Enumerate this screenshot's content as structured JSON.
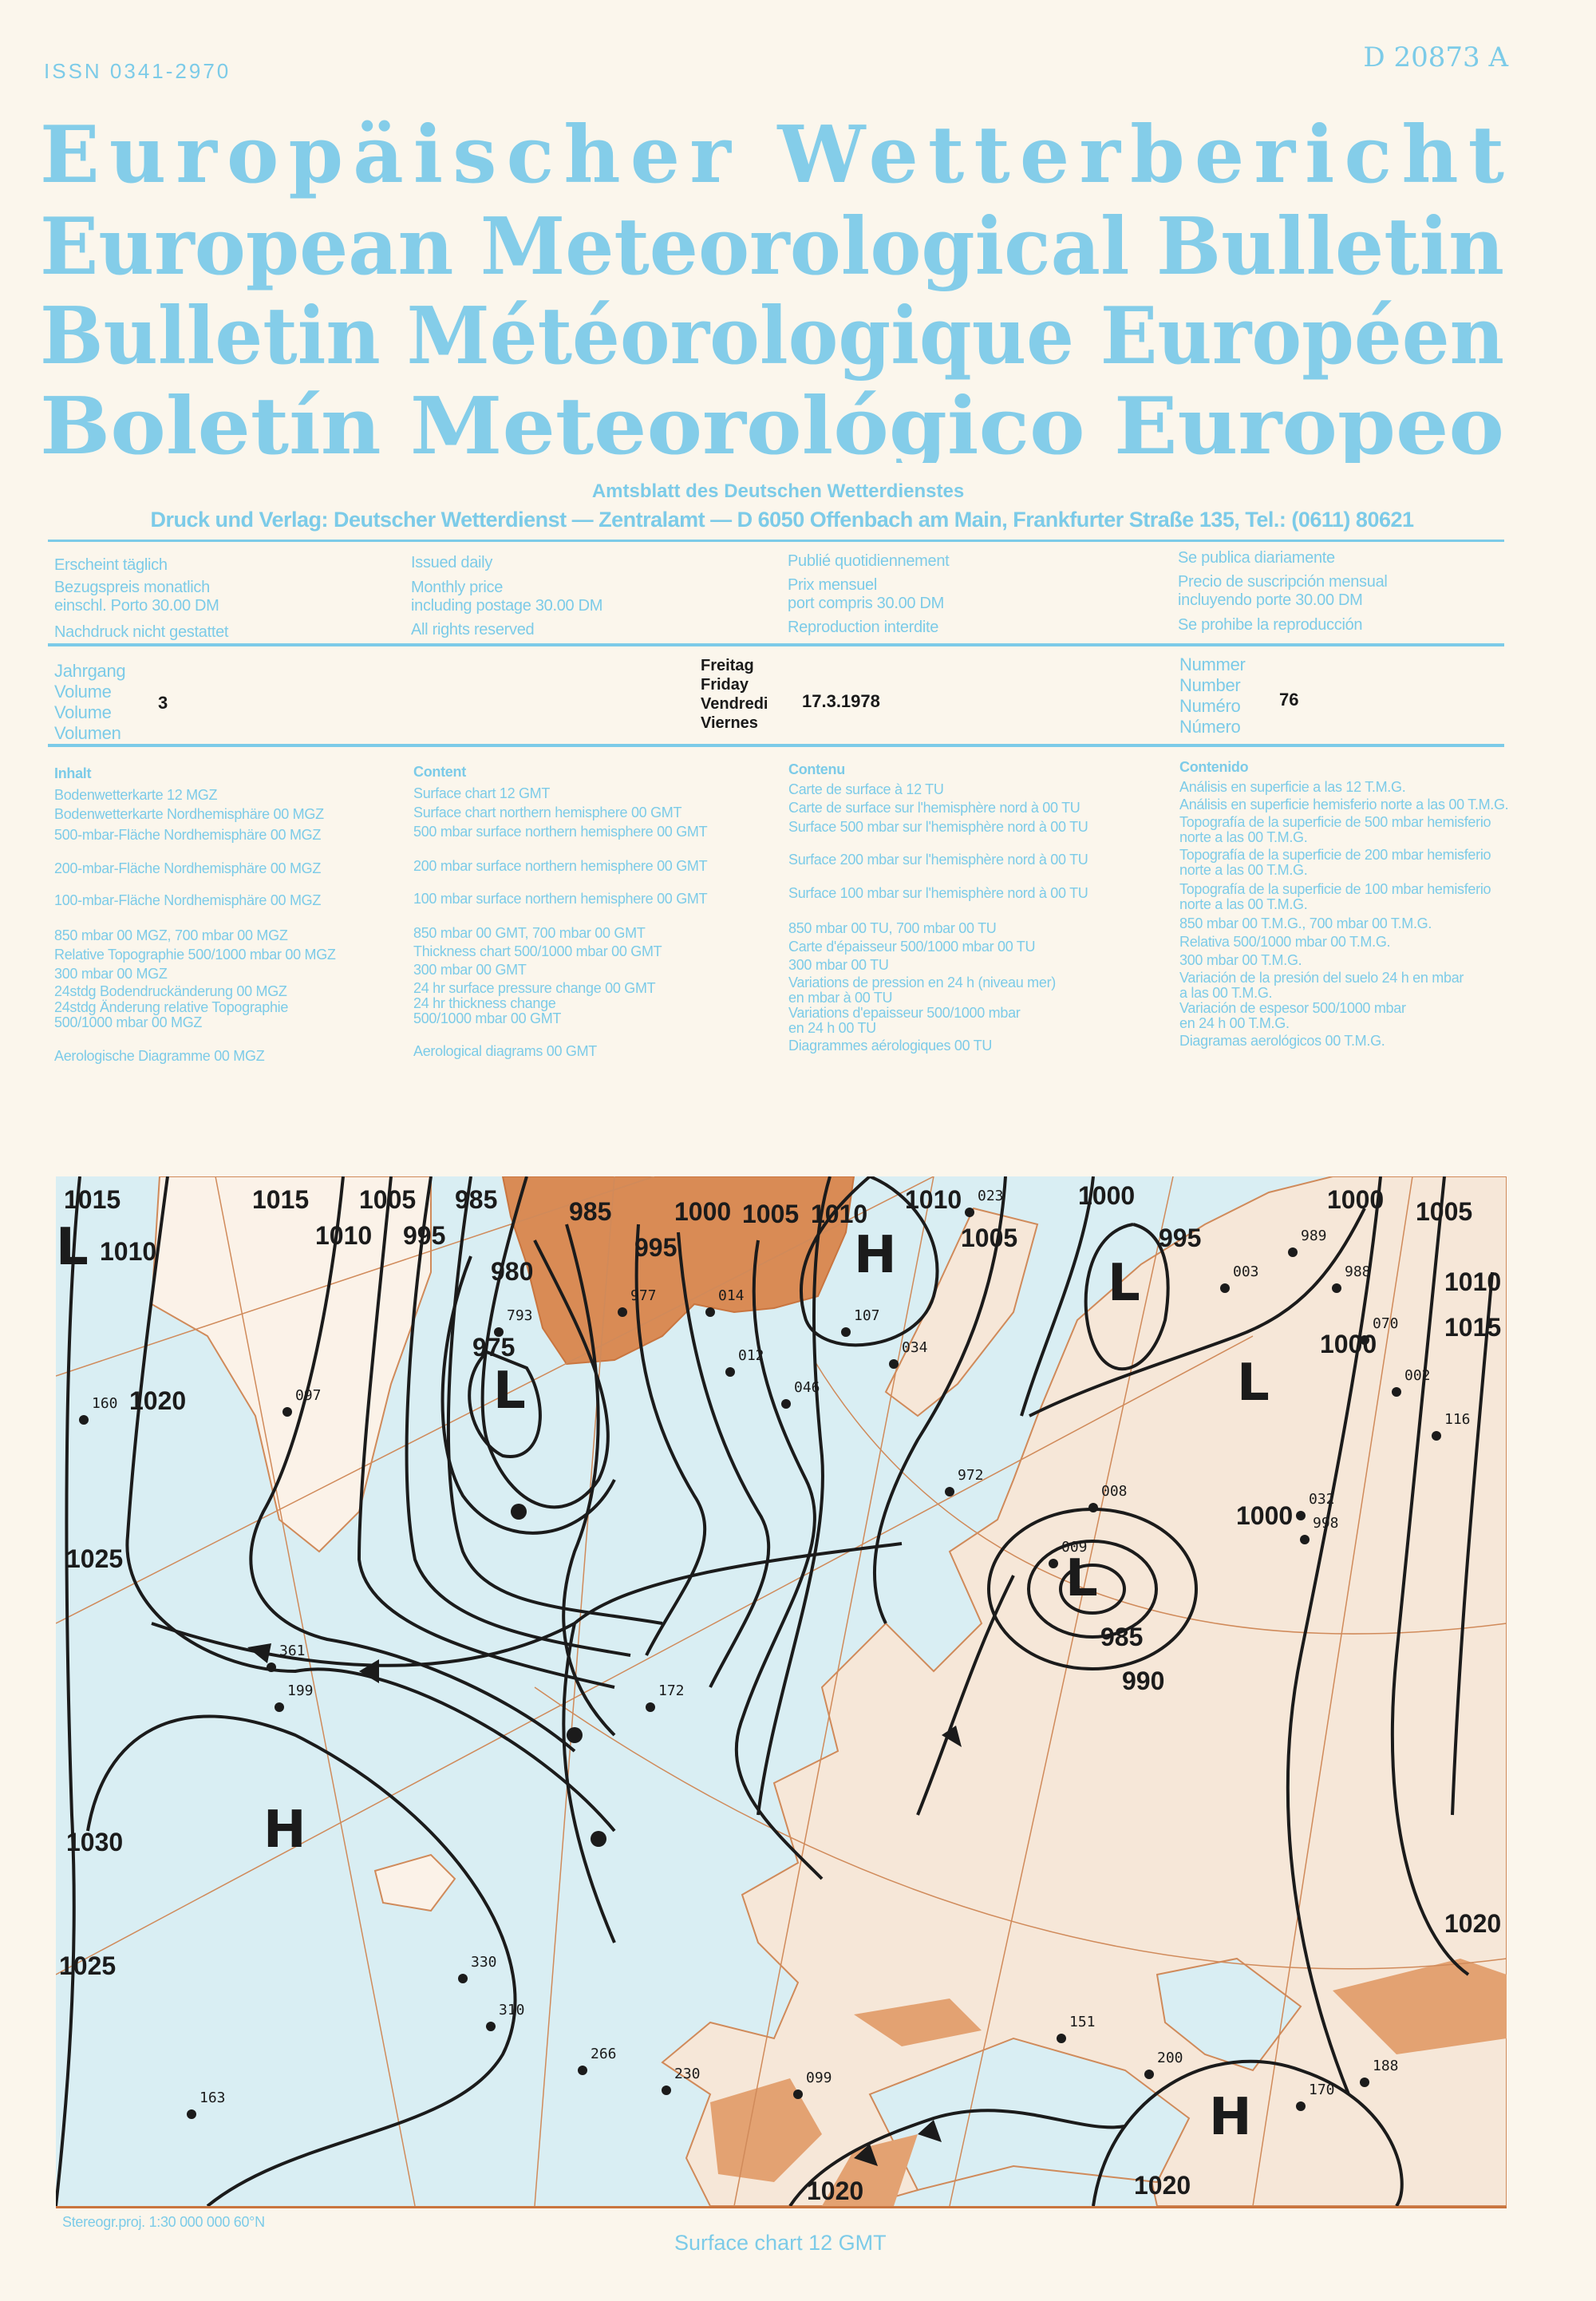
{
  "header": {
    "issn": "ISSN 0341-2970",
    "code": "D 20873 A",
    "titles": [
      "Europäischer Wetterbericht",
      "European Meteorological Bulletin",
      "Bulletin Météorologique Européen",
      "Boletín Meteorológico Europeo"
    ],
    "subtitle": "Amtsblatt des Deutschen Wetterdienstes",
    "publisher": "Druck und Verlag: Deutscher Wetterdienst — Zentralamt — D 6050 Offenbach am Main, Frankfurter Straße 135, Tel.: (0611) 80621"
  },
  "info": [
    {
      "issued": "Erscheint täglich",
      "price1": "Bezugspreis monatlich",
      "price2": "einschl. Porto 30.00 DM",
      "rights": "Nachdruck nicht gestattet"
    },
    {
      "issued": "Issued daily",
      "price1": "Monthly price",
      "price2": "including postage 30.00 DM",
      "rights": "All rights reserved"
    },
    {
      "issued": "Publié quotidiennement",
      "price1": "Prix mensuel",
      "price2": "port compris 30.00 DM",
      "rights": "Reproduction interdite"
    },
    {
      "issued": "Se publica diariamente",
      "price1": "Precio de suscripción mensual",
      "price2": "incluyendo porte 30.00 DM",
      "rights": "Se prohibe la reproducción"
    }
  ],
  "issue": {
    "volume_labels": [
      "Jahrgang",
      "Volume",
      "Volume",
      "Volumen"
    ],
    "volume": "3",
    "day_labels": [
      "Freitag",
      "Friday",
      "Vendredi",
      "Viernes"
    ],
    "date": "17.3.1978",
    "number_labels": [
      "Nummer",
      "Number",
      "Numéro",
      "Número"
    ],
    "number": "76"
  },
  "contents": {
    "de": {
      "heading": "Inhalt",
      "items": [
        "Bodenwetterkarte 12 MGZ",
        "Bodenwetterkarte Nordhemisphäre 00 MGZ",
        "500-mbar-Fläche Nordhemisphäre 00 MGZ",
        "200-mbar-Fläche Nordhemisphäre 00 MGZ",
        "100-mbar-Fläche Nordhemisphäre 00 MGZ",
        "850 mbar 00 MGZ, 700 mbar 00 MGZ",
        "Relative Topographie 500/1000 mbar 00 MGZ",
        "300 mbar 00 MGZ",
        "24stdg Bodendruckänderung 00 MGZ",
        "24stdg Änderung relative Topographie",
        "500/1000 mbar 00 MGZ",
        "Aerologische Diagramme 00 MGZ"
      ]
    },
    "en": {
      "heading": "Content",
      "items": [
        "Surface chart 12 GMT",
        "Surface chart northern hemisphere 00 GMT",
        "500 mbar surface northern hemisphere 00 GMT",
        "200 mbar surface northern hemisphere 00 GMT",
        "100 mbar surface northern hemisphere 00 GMT",
        "850 mbar 00 GMT, 700 mbar 00 GMT",
        "Thickness chart 500/1000 mbar 00 GMT",
        "300 mbar 00 GMT",
        "24 hr surface pressure change 00 GMT",
        "24 hr thickness change",
        "500/1000 mbar 00 GMT",
        "Aerological diagrams 00 GMT"
      ]
    },
    "fr": {
      "heading": "Contenu",
      "items": [
        "Carte de surface à 12 TU",
        "Carte de surface sur l'hemisphère nord à 00 TU",
        "Surface 500 mbar sur l'hemisphère nord à 00 TU",
        "Surface 200 mbar sur l'hemisphère nord à 00 TU",
        "Surface 100 mbar sur l'hemisphère nord à 00 TU",
        "850 mbar 00 TU, 700 mbar 00 TU",
        "Carte d'épaisseur 500/1000 mbar 00 TU",
        "300 mbar 00 TU",
        "Variations de pression en 24 h (niveau mer)",
        "en mbar à 00 TU",
        "Variations d'epaisseur 500/1000 mbar",
        "en 24 h 00 TU",
        "Diagrammes aérologiques 00 TU"
      ]
    },
    "es": {
      "heading": "Contenido",
      "items": [
        "Análisis en superficie a las 12 T.M.G.",
        "Análisis en superficie hemisferio norte a las 00 T.M.G.",
        "Topografía de la superficie de 500 mbar hemisferio",
        "norte a las 00 T.M.G.",
        "Topografía de la superficie de 200 mbar hemisferio",
        "norte a las 00 T.M.G.",
        "Topografía de la superficie de 100 mbar hemisferio",
        "norte a las 00 T.M.G.",
        "850 mbar 00 T.M.G., 700 mbar 00 T.M.G.",
        "Relativa 500/1000 mbar 00 T.M.G.",
        "300 mbar 00 T.M.G.",
        "Variación de la presión del suelo 24 h en mbar",
        "a las 00 T.M.G.",
        "Variación de espesor 500/1000 mbar",
        "en 24 h 00 T.M.G.",
        "Diagramas aerológicos 00 T.M.G."
      ]
    }
  },
  "map": {
    "colors": {
      "sea": "#d9eef3",
      "land": "#f6e7d8",
      "high_ground": "#d98b55",
      "isobar": "#1b1b1b",
      "text": "#7ccbe8"
    },
    "isobar_labels": [
      "1015",
      "1010",
      "1015",
      "1010",
      "1005",
      "995",
      "985",
      "980",
      "975",
      "985",
      "995",
      "1000",
      "1005",
      "1010",
      "1010",
      "1005",
      "1000",
      "995",
      "1000",
      "1005",
      "1010",
      "1015",
      "1020",
      "1025",
      "1030",
      "1025",
      "985",
      "990",
      "1000",
      "1000",
      "1020",
      "1020",
      "1020"
    ],
    "centers": [
      "L",
      "L",
      "H",
      "L",
      "L",
      "H",
      "L",
      "H"
    ],
    "stations": [
      "977",
      "014",
      "793",
      "012",
      "046",
      "097",
      "160",
      "107",
      "023",
      "034",
      "972",
      "009",
      "008",
      "003",
      "989",
      "988",
      "070",
      "002",
      "032",
      "998",
      "116",
      "361",
      "199",
      "172",
      "330",
      "310",
      "266",
      "230",
      "163",
      "099",
      "151",
      "200",
      "170",
      "188"
    ],
    "footer_projection": "Stereogr.proj. 1:30 000 000    60°N",
    "caption": "Surface chart  12 GMT"
  }
}
